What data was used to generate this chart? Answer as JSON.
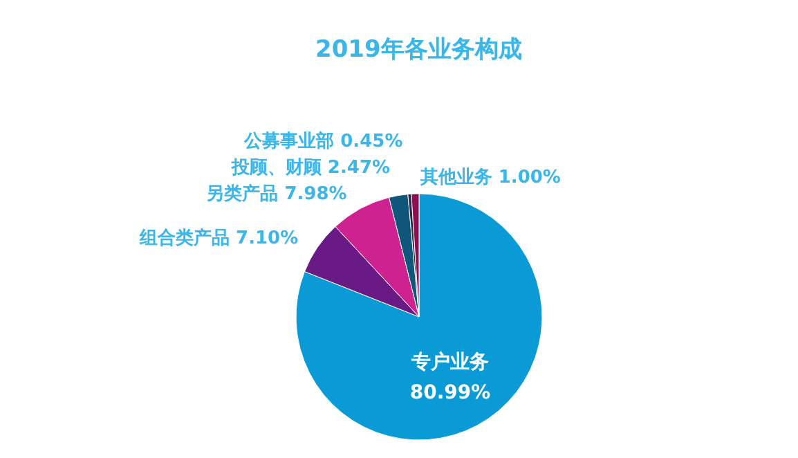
{
  "chart_data": {
    "type": "pie",
    "title": "2019年各业务构成",
    "categories": [
      "专户业务",
      "组合类产品",
      "另类产品",
      "投顾、财顾",
      "公募事业部",
      "其他业务"
    ],
    "values": [
      80.99,
      7.1,
      7.98,
      2.47,
      0.45,
      1.0
    ],
    "value_labels": [
      "80.99%",
      "7.10%",
      "7.98%",
      "2.47%",
      "0.45%",
      "1.00%"
    ],
    "colors": [
      "#0a9ad6",
      "#6a1a84",
      "#cf2291",
      "#10567a",
      "#2a2a48",
      "#8a1050"
    ],
    "legend": false
  }
}
